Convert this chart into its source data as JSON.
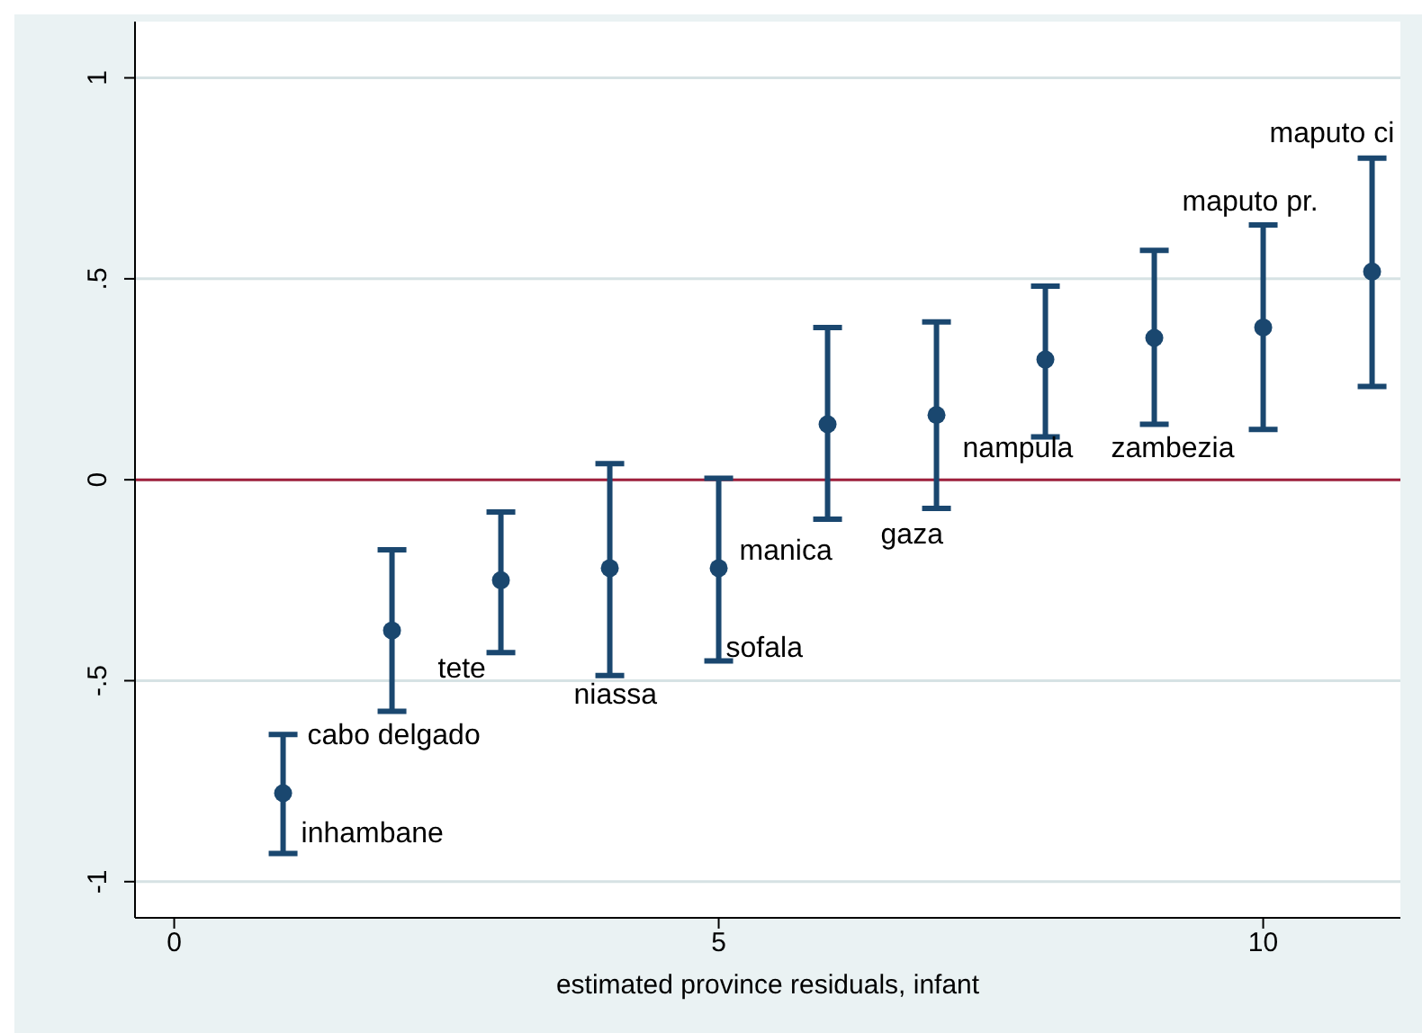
{
  "chart_data": {
    "type": "scatter",
    "xlabel": "estimated province residuals, infant",
    "x": [
      1,
      2,
      3,
      4,
      5,
      6,
      7,
      8,
      9,
      10,
      11
    ],
    "series": [
      {
        "color": "#1a476f",
        "values": [
          -0.78,
          -0.375,
          -0.25,
          -0.22,
          -0.22,
          0.138,
          0.161,
          0.299,
          0.353,
          0.379,
          0.518
        ],
        "errors": [
          [
            -0.93,
            -0.634
          ],
          [
            -0.576,
            -0.174
          ],
          [
            -0.43,
            -0.08
          ],
          [
            -0.487,
            0.04
          ],
          [
            -0.451,
            0.004
          ],
          [
            -0.098,
            0.379
          ],
          [
            -0.071,
            0.393
          ],
          [
            0.107,
            0.482
          ],
          [
            0.138,
            0.571
          ],
          [
            0.125,
            0.634
          ],
          [
            0.232,
            0.8
          ]
        ]
      }
    ],
    "annotations": [
      "inhambane",
      "cabo delgado",
      "tete",
      "niassa",
      "sofala",
      "manica",
      "gaza",
      "nampula",
      "zambezia",
      "maputo pr.",
      "maputo ci"
    ],
    "xlim": [
      -0.36,
      11.26
    ],
    "xticks": [
      0,
      5,
      10
    ],
    "ylim": [
      -1.09,
      1.14
    ],
    "yticks": [
      {
        "value": -1,
        "label": "-1"
      },
      {
        "value": -0.5,
        "label": "-.5"
      },
      {
        "value": 0,
        "label": "0"
      },
      {
        "value": 0.5,
        "label": ".5"
      },
      {
        "value": 1,
        "label": "1"
      }
    ],
    "ref_lines": [
      {
        "axis": "y",
        "value": 0,
        "color": "#a0203c"
      }
    ],
    "grid": "y",
    "marker": "circle",
    "legend": false
  }
}
